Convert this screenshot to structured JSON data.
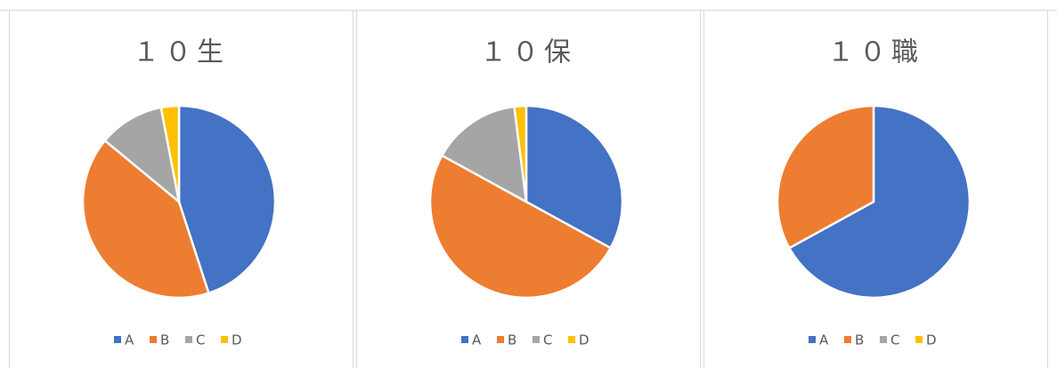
{
  "chart_data": [
    {
      "type": "pie",
      "title": "１０生",
      "categories": [
        "A",
        "B",
        "C",
        "D"
      ],
      "values": [
        45,
        41,
        11,
        3
      ],
      "colors": [
        "#4472c4",
        "#ed7d31",
        "#a5a5a5",
        "#ffc000"
      ]
    },
    {
      "type": "pie",
      "title": "１０保",
      "categories": [
        "A",
        "B",
        "C",
        "D"
      ],
      "values": [
        33,
        50,
        15,
        2
      ],
      "colors": [
        "#4472c4",
        "#ed7d31",
        "#a5a5a5",
        "#ffc000"
      ]
    },
    {
      "type": "pie",
      "title": "１０職",
      "categories": [
        "A",
        "B",
        "C",
        "D"
      ],
      "values": [
        67,
        33,
        0,
        0
      ],
      "colors": [
        "#4472c4",
        "#ed7d31",
        "#a5a5a5",
        "#ffc000"
      ]
    }
  ]
}
